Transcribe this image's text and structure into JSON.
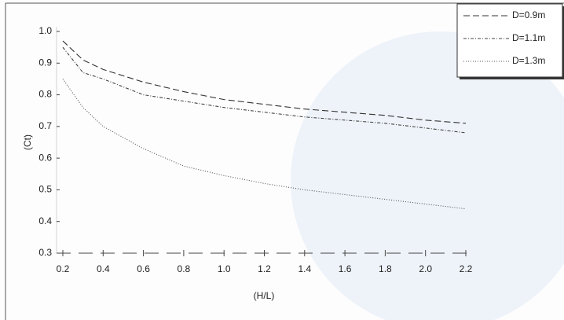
{
  "chart_data": {
    "type": "line",
    "x_label": "(H/L)",
    "y_label": "(Ct)",
    "x": [
      0.2,
      0.3,
      0.4,
      0.6,
      0.8,
      1.0,
      1.2,
      1.4,
      1.6,
      1.8,
      2.0,
      2.2
    ],
    "series": [
      {
        "name": "D=0.9m",
        "color": "#333333",
        "dash": "8 4",
        "values": [
          0.97,
          0.91,
          0.88,
          0.84,
          0.81,
          0.785,
          0.77,
          0.755,
          0.745,
          0.735,
          0.72,
          0.71
        ]
      },
      {
        "name": "D=1.1m",
        "color": "#444444",
        "dash": "4 2 1 2",
        "values": [
          0.95,
          0.87,
          0.85,
          0.8,
          0.78,
          0.76,
          0.745,
          0.73,
          0.72,
          0.71,
          0.695,
          0.68
        ]
      },
      {
        "name": "D=1.3m",
        "color": "#555555",
        "dash": "1 2",
        "values": [
          0.85,
          0.76,
          0.7,
          0.63,
          0.575,
          0.545,
          0.52,
          0.5,
          0.485,
          0.47,
          0.455,
          0.44
        ]
      }
    ],
    "xlim": [
      0.2,
      2.2
    ],
    "ylim": [
      0.3,
      1.0
    ],
    "xticks": [
      0.2,
      0.4,
      0.6,
      0.8,
      {
        "value": 1.0,
        "label": "1.0"
      },
      1.2,
      1.4,
      1.6,
      1.8,
      {
        "value": 2.0,
        "label": "2.0"
      },
      2.2
    ],
    "yticks": [
      0.3,
      0.4,
      0.5,
      0.6,
      0.7,
      0.8,
      0.9,
      {
        "value": 1.0,
        "label": "1.0"
      }
    ],
    "legend": "top-right"
  }
}
